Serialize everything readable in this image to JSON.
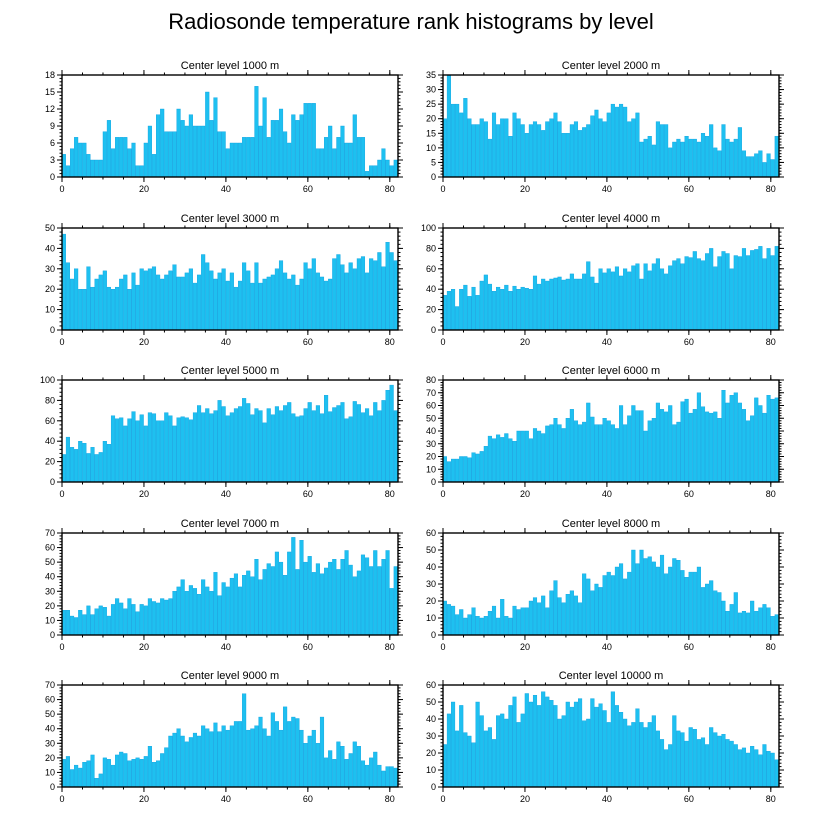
{
  "title": "Radiosonde temperature rank histograms by level",
  "colors": {
    "bar": "#1ec0f0",
    "bar_edge": "#0aa0e0",
    "axis": "#000000"
  },
  "chart_data": [
    {
      "type": "bar",
      "title": "Center level 1000 m",
      "xlim": [
        0,
        82
      ],
      "ylim": [
        0,
        18
      ],
      "xticks": [
        0,
        20,
        40,
        60,
        80
      ],
      "yticks": [
        0,
        3,
        6,
        9,
        12,
        15,
        18
      ],
      "values": [
        4,
        2,
        5,
        7,
        6,
        6,
        4,
        3,
        3,
        3,
        8,
        10,
        5,
        7,
        7,
        7,
        5,
        6,
        2,
        2,
        6,
        9,
        4,
        11,
        12,
        8,
        8,
        8,
        12,
        10,
        9,
        11,
        9,
        9,
        9,
        15,
        10,
        14,
        8,
        8,
        5,
        6,
        6,
        6,
        7,
        7,
        7,
        16,
        9,
        14,
        7,
        10,
        10,
        12,
        8,
        6,
        11,
        10,
        11,
        13,
        13,
        13,
        5,
        5,
        7,
        9,
        5,
        7,
        9,
        6,
        6,
        11,
        7,
        7,
        1,
        2,
        2,
        3,
        5,
        3,
        2,
        3,
        5
      ]
    },
    {
      "type": "bar",
      "title": "Center level 2000 m",
      "xlim": [
        0,
        82
      ],
      "ylim": [
        0,
        35
      ],
      "xticks": [
        0,
        20,
        40,
        60,
        80
      ],
      "yticks": [
        0,
        5,
        10,
        15,
        20,
        25,
        30,
        35
      ],
      "values": [
        20,
        35,
        25,
        25,
        22,
        27,
        20,
        18,
        18,
        20,
        19,
        13,
        22,
        18,
        20,
        20,
        14,
        22,
        20,
        18,
        15,
        18,
        19,
        18,
        16,
        19,
        20,
        22,
        19,
        15,
        15,
        18,
        19,
        16,
        17,
        18,
        21,
        23,
        20,
        19,
        22,
        25,
        24,
        25,
        24,
        19,
        20,
        22,
        12,
        13,
        14,
        11,
        19,
        18,
        18,
        10,
        12,
        13,
        12,
        14,
        13,
        13,
        12,
        15,
        14,
        18,
        10,
        9,
        18,
        13,
        12,
        13,
        17,
        9,
        7,
        7,
        8,
        9,
        5,
        8,
        6,
        14,
        12,
        2
      ]
    },
    {
      "type": "bar",
      "title": "Center level 3000 m",
      "xlim": [
        0,
        82
      ],
      "ylim": [
        0,
        50
      ],
      "xticks": [
        0,
        20,
        40,
        60,
        80
      ],
      "yticks": [
        0,
        10,
        20,
        30,
        40,
        50
      ],
      "values": [
        47,
        33,
        25,
        30,
        20,
        20,
        31,
        21,
        25,
        27,
        29,
        21,
        20,
        21,
        25,
        27,
        20,
        28,
        22,
        30,
        29,
        30,
        31,
        27,
        25,
        27,
        29,
        32,
        26,
        26,
        28,
        30,
        23,
        27,
        37,
        33,
        29,
        25,
        28,
        30,
        24,
        28,
        21,
        24,
        33,
        29,
        23,
        33,
        23,
        25,
        26,
        27,
        30,
        34,
        28,
        25,
        27,
        22,
        25,
        33,
        30,
        35,
        28,
        26,
        24,
        25,
        35,
        37,
        32,
        28,
        33,
        30,
        35,
        36,
        28,
        35,
        34,
        38,
        31,
        43,
        38,
        34
      ]
    },
    {
      "type": "bar",
      "title": "Center level 4000 m",
      "xlim": [
        0,
        82
      ],
      "ylim": [
        0,
        100
      ],
      "xticks": [
        0,
        20,
        40,
        60,
        80
      ],
      "yticks": [
        0,
        20,
        40,
        60,
        80,
        100
      ],
      "values": [
        34,
        38,
        40,
        23,
        40,
        44,
        33,
        42,
        34,
        48,
        54,
        45,
        38,
        42,
        40,
        44,
        38,
        43,
        40,
        42,
        41,
        40,
        53,
        45,
        50,
        48,
        50,
        51,
        52,
        49,
        50,
        55,
        50,
        50,
        55,
        67,
        52,
        46,
        60,
        56,
        60,
        57,
        62,
        53,
        60,
        57,
        63,
        65,
        50,
        65,
        58,
        65,
        70,
        60,
        55,
        63,
        68,
        70,
        65,
        72,
        71,
        77,
        70,
        68,
        75,
        80,
        62,
        72,
        77,
        75,
        60,
        73,
        72,
        80,
        73,
        78,
        79,
        82,
        70,
        80,
        73,
        82,
        68
      ]
    },
    {
      "type": "bar",
      "title": "Center level 5000 m",
      "xlim": [
        0,
        82
      ],
      "ylim": [
        0,
        100
      ],
      "xticks": [
        0,
        20,
        40,
        60,
        80
      ],
      "yticks": [
        0,
        20,
        40,
        60,
        80,
        100
      ],
      "values": [
        27,
        44,
        34,
        32,
        40,
        38,
        28,
        34,
        27,
        29,
        40,
        37,
        65,
        62,
        63,
        55,
        62,
        69,
        60,
        66,
        55,
        68,
        67,
        60,
        60,
        68,
        65,
        55,
        63,
        64,
        63,
        61,
        68,
        75,
        68,
        72,
        67,
        70,
        80,
        74,
        65,
        68,
        72,
        74,
        82,
        77,
        66,
        72,
        70,
        58,
        72,
        66,
        74,
        70,
        75,
        78,
        67,
        64,
        65,
        72,
        78,
        70,
        75,
        67,
        85,
        69,
        73,
        75,
        78,
        62,
        64,
        79,
        76,
        68,
        72,
        65,
        78,
        70,
        80,
        90,
        95,
        70
      ]
    },
    {
      "type": "bar",
      "title": "Center level 6000 m",
      "xlim": [
        0,
        82
      ],
      "ylim": [
        0,
        80
      ],
      "xticks": [
        0,
        20,
        40,
        60,
        80
      ],
      "yticks": [
        0,
        10,
        20,
        30,
        40,
        50,
        60,
        70,
        80
      ],
      "values": [
        20,
        16,
        18,
        18,
        20,
        20,
        19,
        23,
        22,
        24,
        28,
        36,
        34,
        37,
        35,
        38,
        34,
        32,
        40,
        40,
        40,
        34,
        42,
        40,
        38,
        44,
        45,
        50,
        45,
        42,
        50,
        57,
        48,
        45,
        47,
        62,
        51,
        45,
        45,
        50,
        48,
        45,
        42,
        60,
        45,
        52,
        60,
        56,
        56,
        40,
        48,
        50,
        62,
        57,
        55,
        60,
        45,
        47,
        63,
        65,
        54,
        57,
        70,
        59,
        55,
        54,
        55,
        50,
        72,
        62,
        68,
        70,
        62,
        57,
        48,
        52,
        66,
        60,
        54,
        68,
        65,
        66,
        37,
        40
      ]
    },
    {
      "type": "bar",
      "title": "Center level 7000 m",
      "xlim": [
        0,
        82
      ],
      "ylim": [
        0,
        70
      ],
      "xticks": [
        0,
        20,
        40,
        60,
        80
      ],
      "yticks": [
        0,
        10,
        20,
        30,
        40,
        50,
        60,
        70
      ],
      "values": [
        17,
        17,
        13,
        12,
        17,
        14,
        20,
        14,
        18,
        20,
        19,
        13,
        21,
        25,
        22,
        18,
        25,
        21,
        16,
        21,
        20,
        25,
        23,
        22,
        25,
        24,
        25,
        30,
        33,
        38,
        30,
        34,
        32,
        28,
        38,
        33,
        30,
        43,
        27,
        36,
        33,
        39,
        42,
        33,
        41,
        44,
        40,
        52,
        38,
        45,
        49,
        47,
        57,
        50,
        41,
        57,
        67,
        45,
        65,
        50,
        54,
        43,
        49,
        42,
        46,
        50,
        52,
        45,
        52,
        58,
        48,
        40,
        44,
        55,
        53,
        47,
        58,
        47,
        52,
        58,
        32,
        47
      ]
    },
    {
      "type": "bar",
      "title": "Center level 8000 m",
      "xlim": [
        0,
        82
      ],
      "ylim": [
        0,
        60
      ],
      "xticks": [
        0,
        20,
        40,
        60,
        80
      ],
      "yticks": [
        0,
        10,
        20,
        30,
        40,
        50,
        60
      ],
      "values": [
        20,
        18,
        17,
        12,
        15,
        10,
        12,
        16,
        11,
        10,
        11,
        14,
        17,
        10,
        21,
        11,
        10,
        17,
        15,
        16,
        16,
        20,
        22,
        19,
        23,
        16,
        26,
        32,
        22,
        19,
        24,
        26,
        23,
        19,
        36,
        33,
        26,
        30,
        28,
        35,
        37,
        35,
        40,
        42,
        33,
        37,
        50,
        42,
        50,
        45,
        46,
        43,
        40,
        47,
        36,
        40,
        45,
        44,
        38,
        34,
        37,
        37,
        40,
        28,
        30,
        32,
        26,
        25,
        20,
        14,
        18,
        25,
        13,
        14,
        13,
        20,
        14,
        16,
        18,
        16,
        11,
        12
      ]
    },
    {
      "type": "bar",
      "title": "Center level 9000 m",
      "xlim": [
        0,
        82
      ],
      "ylim": [
        0,
        70
      ],
      "xticks": [
        0,
        20,
        40,
        60,
        80
      ],
      "yticks": [
        0,
        10,
        20,
        30,
        40,
        50,
        60,
        70
      ],
      "values": [
        19,
        21,
        12,
        15,
        13,
        17,
        18,
        22,
        6,
        9,
        20,
        19,
        15,
        22,
        24,
        23,
        18,
        19,
        20,
        19,
        21,
        28,
        17,
        18,
        23,
        27,
        35,
        37,
        40,
        35,
        31,
        34,
        37,
        35,
        42,
        40,
        38,
        44,
        38,
        42,
        39,
        42,
        45,
        45,
        64,
        39,
        40,
        42,
        48,
        40,
        35,
        51,
        45,
        39,
        55,
        45,
        48,
        47,
        39,
        30,
        35,
        39,
        30,
        48,
        20,
        25,
        19,
        31,
        28,
        19,
        23,
        31,
        28,
        18,
        15,
        20,
        24,
        15,
        11,
        14,
        14,
        13,
        18
      ]
    },
    {
      "type": "bar",
      "title": "Center level 10000 m",
      "xlim": [
        0,
        82
      ],
      "ylim": [
        0,
        60
      ],
      "xticks": [
        0,
        20,
        40,
        60,
        80
      ],
      "yticks": [
        0,
        10,
        20,
        30,
        40,
        50,
        60
      ],
      "values": [
        25,
        43,
        50,
        33,
        48,
        32,
        30,
        26,
        50,
        42,
        33,
        35,
        28,
        42,
        43,
        40,
        48,
        53,
        38,
        43,
        55,
        50,
        54,
        48,
        56,
        53,
        51,
        48,
        40,
        42,
        50,
        47,
        50,
        52,
        39,
        40,
        52,
        47,
        49,
        45,
        38,
        56,
        48,
        44,
        40,
        36,
        38,
        46,
        38,
        35,
        38,
        42,
        33,
        28,
        22,
        25,
        42,
        33,
        32,
        27,
        35,
        34,
        28,
        29,
        25,
        35,
        32,
        30,
        31,
        28,
        27,
        25,
        22,
        23,
        20,
        24,
        22,
        19,
        25,
        21,
        20,
        16,
        18,
        20,
        22
      ]
    }
  ]
}
